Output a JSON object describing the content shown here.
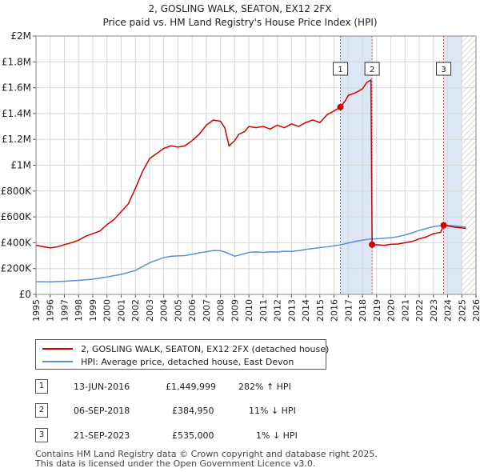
{
  "title_line1": "2, GOSLING WALK, SEATON, EX12 2FX",
  "title_line2": "Price paid vs. HM Land Registry's House Price Index (HPI)",
  "legend": {
    "property": "2, GOSLING WALK, SEATON, EX12 2FX (detached house)",
    "hpi": "HPI: Average price, detached house, East Devon"
  },
  "transactions": [
    {
      "marker": "1",
      "date": "13-JUN-2016",
      "price": "£1,449,999",
      "hpi_change": "282% ↑ HPI"
    },
    {
      "marker": "2",
      "date": "06-SEP-2018",
      "price": "£384,950",
      "hpi_change": "11% ↓ HPI"
    },
    {
      "marker": "3",
      "date": "21-SEP-2023",
      "price": "£535,000",
      "hpi_change": "1% ↓ HPI"
    }
  ],
  "footer_line1": "Contains HM Land Registry data © Crown copyright and database right 2025.",
  "footer_line2": "This data is licensed under the Open Government Licence v3.0.",
  "colors": {
    "property": "#cc0000",
    "hpi": "#5b8fd4",
    "marker_line": "#dd4444",
    "shade": "#dde6f5",
    "grid": "#d8d8d8",
    "plot_bg": "#ffffff"
  },
  "chart_data": {
    "type": "line",
    "xlim": [
      1995,
      2026
    ],
    "ylim": [
      0,
      2000000
    ],
    "x_ticks": [
      "1995",
      "1996",
      "1997",
      "1998",
      "1999",
      "2000",
      "2001",
      "2002",
      "2003",
      "2004",
      "2005",
      "2006",
      "2007",
      "2008",
      "2009",
      "2010",
      "2011",
      "2012",
      "2013",
      "2014",
      "2015",
      "2016",
      "2017",
      "2018",
      "2019",
      "2020",
      "2021",
      "2022",
      "2023",
      "2024",
      "2025",
      "2026"
    ],
    "y_ticks": [
      {
        "value": 0,
        "label": "£0"
      },
      {
        "value": 200000,
        "label": "£200K"
      },
      {
        "value": 400000,
        "label": "£400K"
      },
      {
        "value": 600000,
        "label": "£600K"
      },
      {
        "value": 800000,
        "label": "£800K"
      },
      {
        "value": 1000000,
        "label": "£1M"
      },
      {
        "value": 1200000,
        "label": "£1.2M"
      },
      {
        "value": 1400000,
        "label": "£1.4M"
      },
      {
        "value": 1600000,
        "label": "£1.6M"
      },
      {
        "value": 1800000,
        "label": "£1.8M"
      },
      {
        "value": 2000000,
        "label": "£2M"
      }
    ],
    "shaded_ranges": [
      [
        2016.45,
        2018.68
      ],
      [
        2023.72,
        2025.0
      ]
    ],
    "hatched_range": [
      2025.0,
      2026
    ],
    "markers": [
      {
        "label": "1",
        "x": 2016.45,
        "y": 1449999
      },
      {
        "label": "2",
        "x": 2018.68,
        "y": 384950
      },
      {
        "label": "3",
        "x": 2023.72,
        "y": 535000
      }
    ],
    "series": [
      {
        "name": "2, GOSLING WALK, SEATON, EX12 2FX (detached house)",
        "x": [
          1995.0,
          1995.5,
          1996.0,
          1996.5,
          1997.0,
          1997.5,
          1998.0,
          1998.5,
          1999.0,
          1999.5,
          2000.0,
          2000.5,
          2001.0,
          2001.5,
          2002.0,
          2002.5,
          2003.0,
          2003.5,
          2004.0,
          2004.5,
          2005.0,
          2005.5,
          2006.0,
          2006.5,
          2007.0,
          2007.5,
          2008.0,
          2008.3,
          2008.6,
          2009.0,
          2009.3,
          2009.7,
          2010.0,
          2010.5,
          2011.0,
          2011.5,
          2012.0,
          2012.5,
          2013.0,
          2013.5,
          2014.0,
          2014.5,
          2015.0,
          2015.5,
          2016.0,
          2016.45,
          2016.8,
          2017.0,
          2017.5,
          2018.0,
          2018.3,
          2018.6,
          2018.68,
          2018.75,
          2019.0,
          2019.5,
          2020.0,
          2020.5,
          2021.0,
          2021.5,
          2022.0,
          2022.5,
          2023.0,
          2023.5,
          2023.72,
          2024.0,
          2024.5,
          2025.0,
          2025.3
        ],
        "y": [
          380000,
          370000,
          360000,
          368000,
          385000,
          400000,
          420000,
          450000,
          470000,
          490000,
          540000,
          580000,
          640000,
          700000,
          820000,
          950000,
          1050000,
          1090000,
          1130000,
          1150000,
          1140000,
          1150000,
          1190000,
          1240000,
          1310000,
          1350000,
          1340000,
          1290000,
          1150000,
          1190000,
          1240000,
          1260000,
          1300000,
          1290000,
          1300000,
          1280000,
          1310000,
          1290000,
          1320000,
          1300000,
          1330000,
          1350000,
          1330000,
          1390000,
          1420000,
          1449999,
          1500000,
          1540000,
          1560000,
          1590000,
          1640000,
          1660000,
          384950,
          380000,
          385000,
          380000,
          388000,
          390000,
          400000,
          410000,
          430000,
          445000,
          470000,
          480000,
          535000,
          530000,
          520000,
          515000,
          510000
        ]
      },
      {
        "name": "HPI: Average price, detached house, East Devon",
        "x": [
          1995.0,
          1996.0,
          1997.0,
          1998.0,
          1999.0,
          2000.0,
          2001.0,
          2002.0,
          2002.5,
          2003.0,
          2003.5,
          2004.0,
          2004.5,
          2005.0,
          2005.5,
          2006.0,
          2006.5,
          2007.0,
          2007.5,
          2008.0,
          2008.5,
          2009.0,
          2009.5,
          2010.0,
          2010.5,
          2011.0,
          2011.5,
          2012.0,
          2012.5,
          2013.0,
          2013.5,
          2014.0,
          2014.5,
          2015.0,
          2015.5,
          2016.0,
          2016.5,
          2017.0,
          2017.5,
          2018.0,
          2018.5,
          2019.0,
          2019.5,
          2020.0,
          2020.5,
          2021.0,
          2021.5,
          2022.0,
          2022.5,
          2023.0,
          2023.5,
          2024.0,
          2024.5,
          2025.0,
          2025.3
        ],
        "y": [
          98000,
          97000,
          102000,
          108000,
          118000,
          135000,
          155000,
          185000,
          215000,
          245000,
          265000,
          285000,
          295000,
          298000,
          300000,
          310000,
          322000,
          330000,
          340000,
          338000,
          320000,
          295000,
          310000,
          325000,
          330000,
          325000,
          330000,
          328000,
          334000,
          332000,
          338000,
          348000,
          355000,
          362000,
          368000,
          376000,
          385000,
          398000,
          410000,
          420000,
          428000,
          430000,
          435000,
          438000,
          447000,
          460000,
          476000,
          495000,
          510000,
          525000,
          532000,
          535000,
          530000,
          525000,
          520000
        ]
      }
    ]
  }
}
